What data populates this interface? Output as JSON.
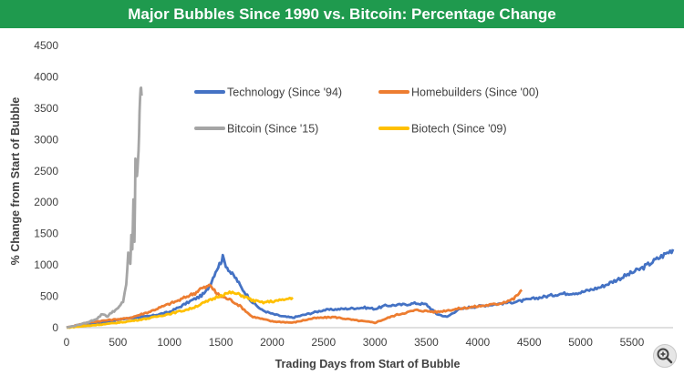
{
  "header": {
    "title": "Major Bubbles Since 1990 vs. Bitcoin: Percentage Change",
    "background_color": "#1f9a4e"
  },
  "chart_data": {
    "type": "line",
    "title": "Major Bubbles Since 1990 vs. Bitcoin: Percentage Change",
    "xlabel": "Trading Days from Start of Bubble",
    "ylabel": "% Change from Start of Bubble",
    "xlim": [
      0,
      5900
    ],
    "ylim": [
      0,
      4500
    ],
    "xticks": [
      "0",
      "500",
      "1000",
      "1500",
      "2000",
      "2500",
      "3000",
      "3500",
      "4000",
      "4500",
      "5000",
      "5500"
    ],
    "yticks": [
      "0",
      "500",
      "1000",
      "1500",
      "2000",
      "2500",
      "3000",
      "3500",
      "4000",
      "4500"
    ],
    "grid": false,
    "legend_position": "top-center",
    "series": [
      {
        "name": "Technology (Since '94)",
        "color": "#4472c4",
        "x": [
          0,
          200,
          400,
          600,
          800,
          1000,
          1100,
          1200,
          1300,
          1350,
          1400,
          1450,
          1500,
          1520,
          1550,
          1600,
          1650,
          1700,
          1800,
          1900,
          2000,
          2100,
          2200,
          2300,
          2500,
          2700,
          2900,
          3000,
          3100,
          3300,
          3400,
          3500,
          3600,
          3700,
          3800,
          3900,
          4000,
          4200,
          4400,
          4600,
          4800,
          5000,
          5200,
          5400,
          5600,
          5800,
          5900
        ],
        "y": [
          0,
          50,
          100,
          150,
          180,
          250,
          330,
          420,
          500,
          560,
          700,
          900,
          1050,
          1120,
          1000,
          870,
          780,
          640,
          420,
          280,
          220,
          180,
          160,
          200,
          280,
          300,
          320,
          300,
          350,
          370,
          390,
          370,
          220,
          170,
          280,
          320,
          340,
          380,
          420,
          480,
          540,
          560,
          650,
          800,
          950,
          1150,
          1250
        ]
      },
      {
        "name": "Homebuilders (Since '00)",
        "color": "#ed7d31",
        "x": [
          0,
          200,
          400,
          600,
          800,
          1000,
          1100,
          1200,
          1250,
          1300,
          1350,
          1400,
          1450,
          1500,
          1600,
          1700,
          1800,
          1900,
          2000,
          2200,
          2400,
          2600,
          2800,
          3000,
          3200,
          3400,
          3600,
          3800,
          4000,
          4200,
          4350,
          4430
        ],
        "y": [
          0,
          80,
          120,
          150,
          250,
          380,
          440,
          520,
          550,
          620,
          640,
          680,
          560,
          500,
          440,
          330,
          180,
          140,
          100,
          80,
          150,
          170,
          120,
          80,
          200,
          280,
          250,
          300,
          340,
          380,
          460,
          600
        ]
      },
      {
        "name": "Bitcoin (Since '15)",
        "color": "#a5a5a5",
        "x": [
          0,
          100,
          200,
          300,
          350,
          400,
          450,
          500,
          550,
          580,
          600,
          620,
          630,
          640,
          650,
          660,
          670,
          680,
          690,
          700,
          710,
          720,
          730
        ],
        "y": [
          0,
          40,
          80,
          150,
          220,
          180,
          260,
          300,
          420,
          700,
          1150,
          1000,
          1450,
          1200,
          2100,
          1400,
          2600,
          2500,
          2550,
          2900,
          3300,
          3850,
          3700
        ]
      },
      {
        "name": "Biotech (Since '09)",
        "color": "#ffc000",
        "x": [
          0,
          200,
          400,
          600,
          800,
          1000,
          1200,
          1400,
          1500,
          1600,
          1700,
          1800,
          1900,
          2000,
          2100,
          2200
        ],
        "y": [
          0,
          30,
          60,
          100,
          150,
          220,
          300,
          440,
          520,
          560,
          520,
          440,
          400,
          420,
          440,
          480
        ]
      }
    ]
  }
}
